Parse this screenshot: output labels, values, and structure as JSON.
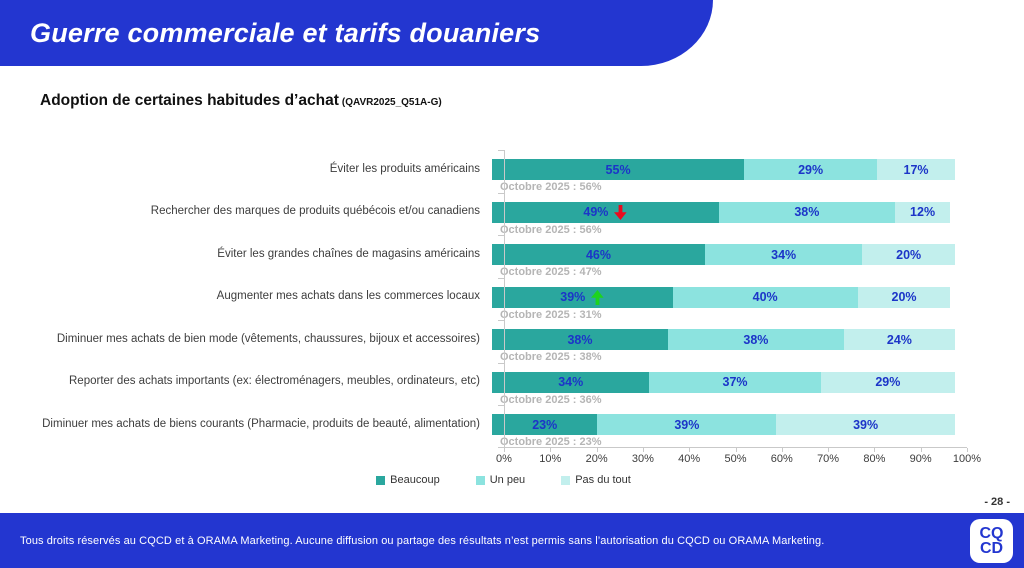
{
  "header": {
    "title": "Guerre commerciale et tarifs douaniers"
  },
  "slide": {
    "title_ref": "(QAVR2025_Q51A-G)",
    "page_number": "- 28 -"
  },
  "footer": {
    "text": "Tous droits réservés au CQCD et à ORAMA Marketing. Aucune diffusion ou partage des résultats n’est permis sans l’autorisation du CQCD ou ORAMA Marketing.",
    "logo_line1": "CQ",
    "logo_line2": "CD"
  },
  "chart_data": {
    "type": "bar",
    "orientation": "horizontal",
    "stacked": true,
    "title": "Adoption de certaines habitudes d’achat",
    "xlabel": "",
    "ylabel": "",
    "x_axis": {
      "min": 0,
      "max": 100,
      "tick_step": 10,
      "tick_labels": [
        "0%",
        "10%",
        "20%",
        "30%",
        "40%",
        "50%",
        "60%",
        "70%",
        "80%",
        "90%",
        "100%"
      ]
    },
    "legend": {
      "position": "bottom",
      "entries": [
        "Beaucoup",
        "Un peu",
        "Pas du tout"
      ]
    },
    "series_colors": [
      "#2aa79e",
      "#8ce3df",
      "#c2efed"
    ],
    "value_label_color": "#1c35c8",
    "trend_colors": {
      "up": "#1ed31e",
      "down": "#ea0b1e"
    },
    "categories": [
      {
        "label": "Éviter les produits américains",
        "values": [
          55,
          29,
          17
        ],
        "value_labels": [
          "55%",
          "29%",
          "17%"
        ],
        "annotation": "Octobre 2025 : 56%",
        "trend": null
      },
      {
        "label": "Rechercher des marques de produits québécois et/ou canadiens",
        "values": [
          49,
          38,
          12
        ],
        "value_labels": [
          "49%",
          "38%",
          "12%"
        ],
        "annotation": "Octobre 2025 : 56%",
        "trend": "down"
      },
      {
        "label": "Éviter les grandes chaînes de magasins américains",
        "values": [
          46,
          34,
          20
        ],
        "value_labels": [
          "46%",
          "34%",
          "20%"
        ],
        "annotation": "Octobre 2025 : 47%",
        "trend": null
      },
      {
        "label": "Augmenter mes achats dans les commerces locaux",
        "values": [
          39,
          40,
          20
        ],
        "value_labels": [
          "39%",
          "40%",
          "20%"
        ],
        "annotation": "Octobre 2025 : 31%",
        "trend": "up"
      },
      {
        "label": "Diminuer mes achats de bien mode (vêtements, chaussures, bijoux et accessoires)",
        "values": [
          38,
          38,
          24
        ],
        "value_labels": [
          "38%",
          "38%",
          "24%"
        ],
        "annotation": "Octobre 2025 : 38%",
        "trend": null
      },
      {
        "label": "Reporter des achats importants (ex: électroménagers, meubles, ordinateurs, etc)",
        "values": [
          34,
          37,
          29
        ],
        "value_labels": [
          "34%",
          "37%",
          "29%"
        ],
        "annotation": "Octobre 2025 : 36%",
        "trend": null
      },
      {
        "label": "Diminuer mes achats de biens courants (Pharmacie, produits de beauté, alimentation)",
        "values": [
          23,
          39,
          39
        ],
        "value_labels": [
          "23%",
          "39%",
          "39%"
        ],
        "annotation": "Octobre 2025 : 23%",
        "trend": null
      }
    ]
  }
}
